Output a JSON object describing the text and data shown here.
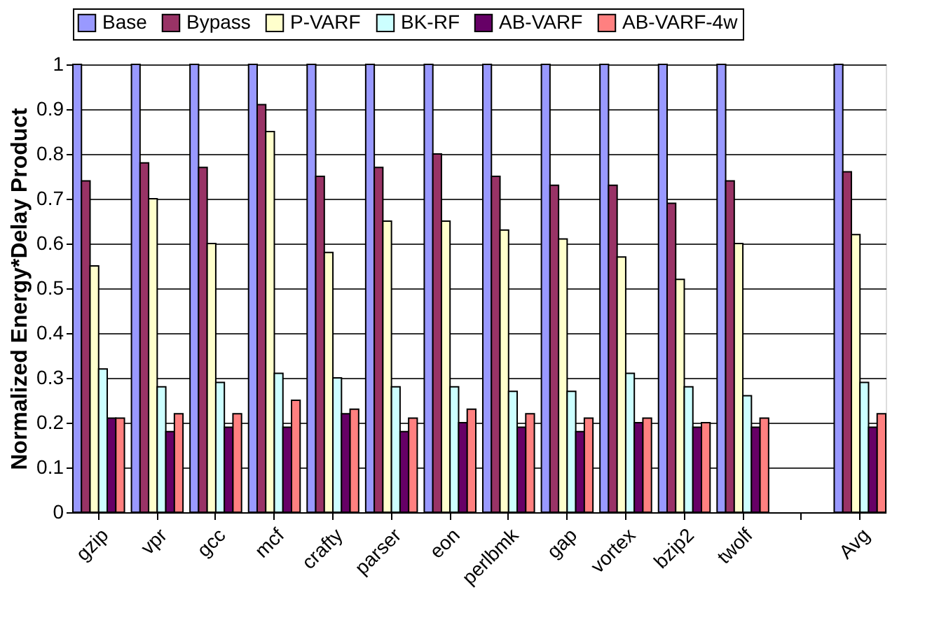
{
  "chart_data": {
    "type": "bar",
    "ylabel": "Normalized Energy*Delay Product",
    "categories": [
      "gzip",
      "vpr",
      "gcc",
      "mcf",
      "crafty",
      "parser",
      "eon",
      "perlbmk",
      "gap",
      "vortex",
      "bzip2",
      "twolf",
      null,
      "Avg"
    ],
    "series": [
      {
        "name": "Base",
        "color": "#9999ff",
        "values": [
          1,
          1,
          1,
          1,
          1,
          1,
          1,
          1,
          1,
          1,
          1,
          1,
          null,
          1
        ]
      },
      {
        "name": "Bypass",
        "color": "#993366",
        "values": [
          0.74,
          0.78,
          0.77,
          0.91,
          0.75,
          0.77,
          0.8,
          0.75,
          0.73,
          0.73,
          0.69,
          0.74,
          null,
          0.76
        ]
      },
      {
        "name": "P-VARF",
        "color": "#ffffcc",
        "values": [
          0.55,
          0.7,
          0.6,
          0.85,
          0.58,
          0.65,
          0.65,
          0.63,
          0.61,
          0.57,
          0.52,
          0.6,
          null,
          0.62
        ]
      },
      {
        "name": "BK-RF",
        "color": "#ccffff",
        "values": [
          0.32,
          0.28,
          0.29,
          0.31,
          0.3,
          0.28,
          0.28,
          0.27,
          0.27,
          0.31,
          0.28,
          0.26,
          null,
          0.29
        ]
      },
      {
        "name": "AB-VARF",
        "color": "#660066",
        "values": [
          0.21,
          0.18,
          0.19,
          0.19,
          0.22,
          0.18,
          0.2,
          0.19,
          0.18,
          0.2,
          0.19,
          0.19,
          null,
          0.19
        ]
      },
      {
        "name": "AB-VARF-4w",
        "color": "#ff8080",
        "values": [
          0.21,
          0.22,
          0.22,
          0.25,
          0.23,
          0.21,
          0.23,
          0.22,
          0.21,
          0.21,
          0.2,
          0.21,
          null,
          0.22
        ]
      }
    ],
    "ylim": [
      0,
      1
    ],
    "yticks": [
      0,
      0.1,
      0.2,
      0.3,
      0.4,
      0.5,
      0.6,
      0.7,
      0.8,
      0.9,
      1
    ],
    "grid": "y",
    "legend": "top"
  }
}
